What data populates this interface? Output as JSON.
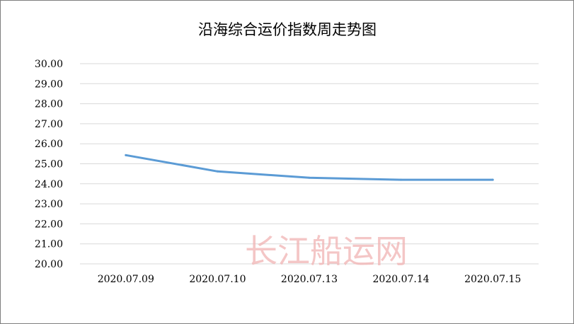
{
  "chart_data": {
    "type": "line",
    "title": "沿海综合运价指数周走势图",
    "categories": [
      "2020.07.09",
      "2020.07.10",
      "2020.07.13",
      "2020.07.14",
      "2020.07.15"
    ],
    "series": [
      {
        "values": [
          25.43,
          24.62,
          24.3,
          24.2,
          24.2
        ]
      }
    ],
    "y_ticks": [
      "20.00",
      "21.00",
      "22.00",
      "23.00",
      "24.00",
      "25.00",
      "26.00",
      "27.00",
      "28.00",
      "29.00",
      "30.00"
    ],
    "ylim": [
      20,
      30
    ],
    "grid": true,
    "legend": "none",
    "colors": {
      "line": "#5b9bd5",
      "grid": "#d9d9d9",
      "watermark": "#f1b3b3"
    }
  },
  "watermark": {
    "text": "长江船运网"
  }
}
